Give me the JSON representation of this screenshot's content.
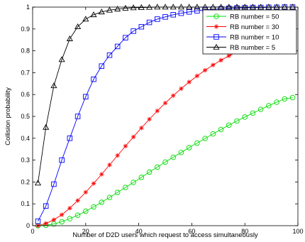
{
  "chart_data": {
    "type": "line",
    "title": "",
    "xlabel": "Number of D2D users which request to access simultaneously",
    "ylabel": "Collision probability",
    "xlim": [
      0,
      100
    ],
    "ylim": [
      0,
      1
    ],
    "xticks": [
      "0",
      "20",
      "40",
      "60",
      "80",
      "100"
    ],
    "yticks": [
      "0",
      "0.1",
      "0.2",
      "0.3",
      "0.4",
      "0.5",
      "0.6",
      "0.7",
      "0.8",
      "0.9",
      "1"
    ],
    "grid": false,
    "legend_position": "top-right",
    "x": [
      2,
      5,
      8,
      11,
      14,
      17,
      20,
      23,
      26,
      29,
      32,
      35,
      38,
      41,
      44,
      47,
      50,
      53,
      56,
      59,
      62,
      65,
      68,
      71,
      74,
      77,
      80,
      83,
      86,
      89,
      92,
      95,
      98
    ],
    "series": [
      {
        "name": "RB number = 50",
        "color": "#00dd00",
        "marker": "circle",
        "values": [
          0.0,
          0.002,
          0.008,
          0.018,
          0.032,
          0.048,
          0.066,
          0.086,
          0.107,
          0.129,
          0.152,
          0.175,
          0.198,
          0.221,
          0.245,
          0.268,
          0.291,
          0.313,
          0.335,
          0.357,
          0.378,
          0.399,
          0.42,
          0.44,
          0.46,
          0.479,
          0.497,
          0.515,
          0.532,
          0.549,
          0.565,
          0.58,
          0.586
        ]
      },
      {
        "name": "RB number = 30",
        "color": "#ff0000",
        "marker": "star",
        "values": [
          0.0,
          0.01,
          0.027,
          0.05,
          0.08,
          0.115,
          0.153,
          0.193,
          0.235,
          0.278,
          0.321,
          0.364,
          0.406,
          0.447,
          0.487,
          0.525,
          0.561,
          0.595,
          0.627,
          0.657,
          0.685,
          0.711,
          0.735,
          0.757,
          0.777,
          0.796,
          0.813,
          0.829,
          0.844,
          0.858,
          0.871,
          0.882,
          0.892
        ]
      },
      {
        "name": "RB number = 10",
        "color": "#0000ff",
        "marker": "square",
        "values": [
          0.02,
          0.09,
          0.19,
          0.3,
          0.4,
          0.5,
          0.59,
          0.67,
          0.73,
          0.78,
          0.82,
          0.86,
          0.89,
          0.91,
          0.93,
          0.945,
          0.955,
          0.965,
          0.972,
          0.978,
          0.983,
          0.987,
          0.99,
          0.992,
          0.994,
          0.996,
          0.997,
          0.998,
          0.998,
          0.999,
          0.999,
          1.0,
          1.0
        ]
      },
      {
        "name": "RB number = 5",
        "color": "#000000",
        "marker": "triangle",
        "values": [
          0.195,
          0.45,
          0.64,
          0.76,
          0.855,
          0.91,
          0.945,
          0.965,
          0.978,
          0.986,
          0.991,
          0.995,
          0.997,
          0.998,
          0.999,
          1.0,
          1.0,
          1.0,
          1.0,
          1.0,
          1.0,
          1.0,
          1.0,
          1.0,
          1.0,
          1.0,
          1.0,
          1.0,
          1.0,
          1.0,
          1.0,
          1.0,
          1.0
        ]
      }
    ]
  }
}
